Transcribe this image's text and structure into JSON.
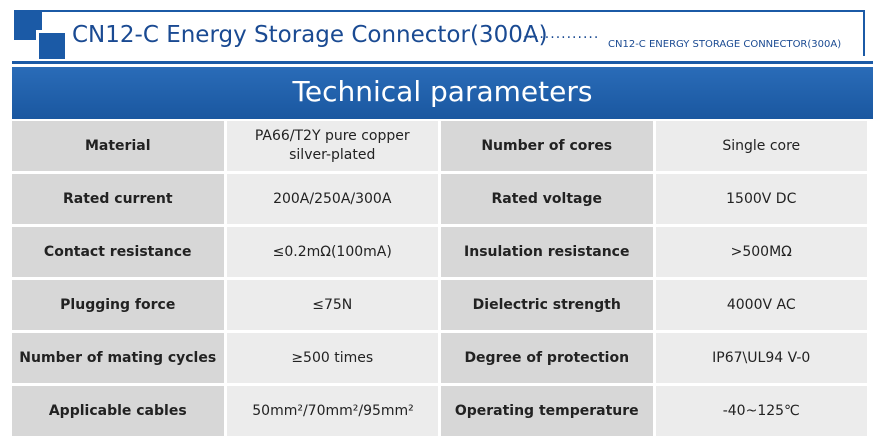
{
  "header": {
    "title": "CN12-C Energy Storage Connector(300A)",
    "subtitle": "CN12-C ENERGY STORAGE CONNECTOR(300A)"
  },
  "banner": {
    "title": "Technical parameters"
  },
  "table": {
    "rows": [
      [
        "Material",
        "PA66/T2Y pure copper silver-plated",
        "Number of cores",
        "Single core"
      ],
      [
        "Rated current",
        "200A/250A/300A",
        "Rated voltage",
        "1500V  DC"
      ],
      [
        "Contact resistance",
        "≤0.2mΩ(100mA)",
        "Insulation resistance",
        ">500MΩ"
      ],
      [
        "Plugging force",
        "≤75N",
        "Dielectric strength",
        "4000V  AC"
      ],
      [
        "Number of mating cycles",
        "≥500 times",
        "Degree of protection",
        "IP67\\UL94 V-0"
      ],
      [
        "Applicable cables",
        "50mm²/70mm²/95mm²",
        "Operating temperature",
        "-40~125℃"
      ]
    ]
  }
}
